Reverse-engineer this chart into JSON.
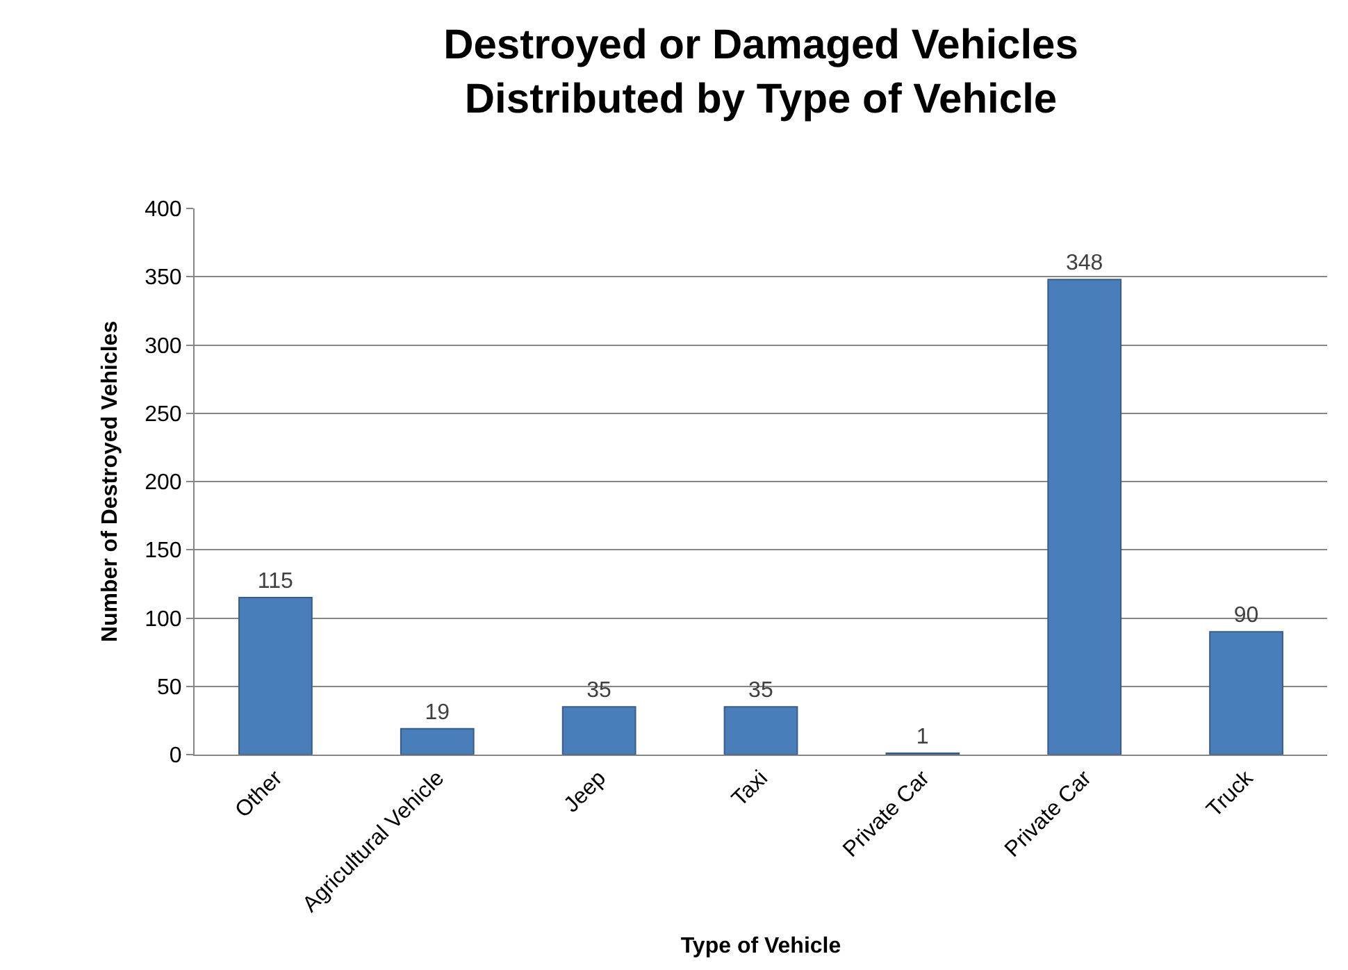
{
  "chart_data": {
    "type": "bar",
    "title": "Destroyed or Damaged Vehicles\nDistributed by Type of Vehicle",
    "xlabel": "Type of Vehicle",
    "ylabel": "Number of Destroyed Vehicles",
    "categories": [
      "Other",
      "Agricultural Vehicle",
      "Jeep",
      "Taxi",
      "Private Car",
      "Private Car",
      "Truck"
    ],
    "values": [
      115,
      19,
      35,
      35,
      1,
      348,
      90
    ],
    "color": "#4a7ebb",
    "ylim": [
      0,
      400
    ],
    "yticks": [
      0,
      50,
      100,
      150,
      200,
      250,
      300,
      350,
      400
    ],
    "grid": "y",
    "data_labels": true,
    "legend": false
  }
}
